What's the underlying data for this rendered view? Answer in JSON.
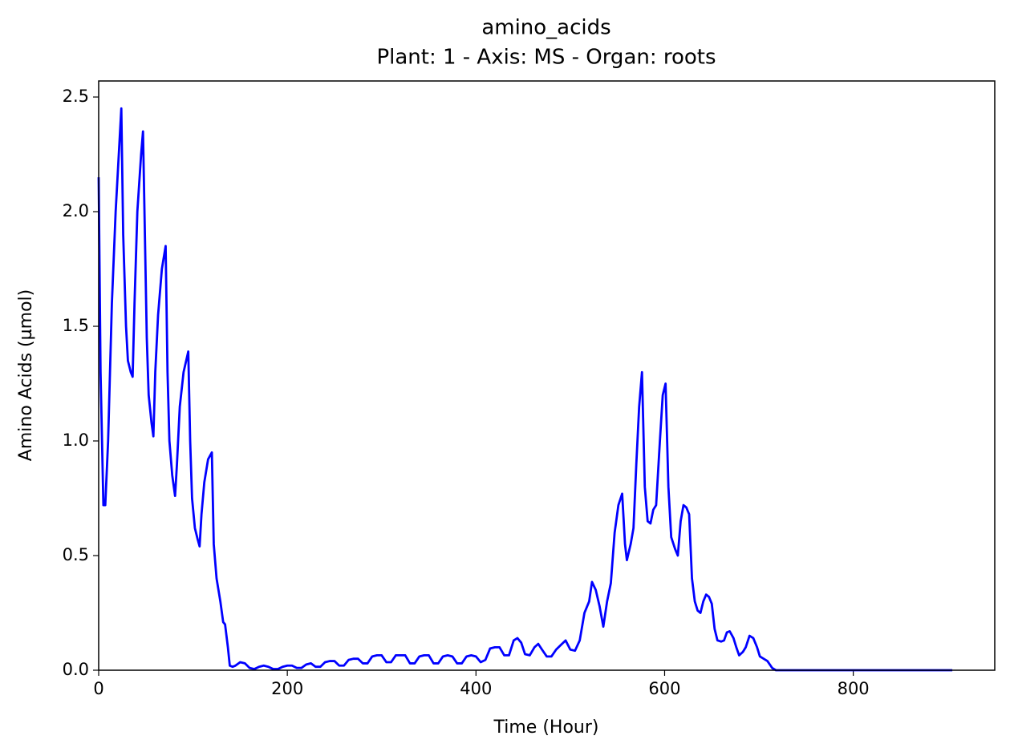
{
  "chart_data": {
    "type": "line",
    "title": "amino_acids",
    "subtitle": "Plant: 1 - Axis: MS - Organ: roots",
    "x_label": "Time (Hour)",
    "y_label": "Amino Acids (µmol)",
    "color": "#0000ff",
    "xlim": [
      0,
      950
    ],
    "xticks": [
      0,
      200,
      400,
      600,
      800
    ],
    "ylim": [
      0,
      2.57
    ],
    "yticks": [
      {
        "value": 0,
        "label": "0.0"
      },
      0.5,
      {
        "value": 1,
        "label": "1.0"
      },
      1.5,
      {
        "value": 2,
        "label": "2.0"
      },
      2.5
    ],
    "x": [
      0,
      2,
      5,
      7,
      10,
      14,
      18,
      22,
      24,
      26,
      29,
      31,
      34,
      36,
      38,
      41,
      45,
      47,
      49,
      51,
      53,
      56,
      58,
      60,
      63,
      67,
      71,
      73,
      75,
      78,
      81,
      83,
      86,
      90,
      95,
      97,
      99,
      102,
      105,
      107,
      109,
      112,
      116,
      120,
      122,
      125,
      129,
      132,
      134,
      137,
      139,
      142,
      145,
      150,
      155,
      160,
      165,
      170,
      175,
      180,
      185,
      190,
      195,
      200,
      205,
      210,
      215,
      220,
      225,
      230,
      235,
      240,
      245,
      250,
      255,
      260,
      265,
      270,
      275,
      280,
      285,
      290,
      295,
      300,
      305,
      310,
      315,
      320,
      325,
      330,
      335,
      340,
      345,
      350,
      355,
      360,
      365,
      370,
      375,
      380,
      385,
      390,
      395,
      400,
      405,
      410,
      415,
      420,
      425,
      430,
      435,
      440,
      444,
      448,
      452,
      457,
      462,
      466,
      470,
      475,
      480,
      485,
      490,
      495,
      500,
      505,
      510,
      515,
      520,
      523,
      527,
      531,
      535,
      539,
      543,
      547,
      551,
      555,
      558,
      560,
      564,
      567,
      570,
      573,
      576,
      579,
      582,
      585,
      588,
      591,
      595,
      598,
      601,
      604,
      607,
      611,
      614,
      617,
      620,
      623,
      626,
      629,
      632,
      635,
      638,
      641,
      644,
      647,
      650,
      653,
      656,
      660,
      663,
      666,
      669,
      673,
      676,
      679,
      683,
      686,
      690,
      694,
      698,
      701,
      705,
      709,
      714,
      718,
      900,
      905
    ],
    "values": [
      2.15,
      1.3,
      0.72,
      0.72,
      1.0,
      1.6,
      2.0,
      2.3,
      2.45,
      1.9,
      1.5,
      1.35,
      1.3,
      1.28,
      1.6,
      2.0,
      2.25,
      2.35,
      1.9,
      1.45,
      1.2,
      1.08,
      1.02,
      1.3,
      1.55,
      1.75,
      1.85,
      1.3,
      1.0,
      0.85,
      0.76,
      0.9,
      1.15,
      1.3,
      1.39,
      1.0,
      0.75,
      0.62,
      0.57,
      0.54,
      0.68,
      0.82,
      0.92,
      0.95,
      0.55,
      0.4,
      0.3,
      0.21,
      0.2,
      0.1,
      0.02,
      0.015,
      0.02,
      0.035,
      0.03,
      0.01,
      0.005,
      0.015,
      0.02,
      0.015,
      0.005,
      0.005,
      0.015,
      0.02,
      0.02,
      0.01,
      0.01,
      0.025,
      0.03,
      0.015,
      0.015,
      0.035,
      0.04,
      0.04,
      0.02,
      0.02,
      0.045,
      0.05,
      0.05,
      0.03,
      0.03,
      0.06,
      0.065,
      0.065,
      0.035,
      0.035,
      0.065,
      0.065,
      0.065,
      0.03,
      0.03,
      0.06,
      0.065,
      0.065,
      0.03,
      0.03,
      0.06,
      0.065,
      0.06,
      0.03,
      0.03,
      0.06,
      0.065,
      0.06,
      0.035,
      0.045,
      0.095,
      0.1,
      0.1,
      0.065,
      0.065,
      0.13,
      0.14,
      0.12,
      0.07,
      0.065,
      0.1,
      0.115,
      0.09,
      0.06,
      0.06,
      0.09,
      0.11,
      0.13,
      0.09,
      0.085,
      0.13,
      0.25,
      0.3,
      0.385,
      0.35,
      0.28,
      0.19,
      0.3,
      0.38,
      0.6,
      0.72,
      0.77,
      0.55,
      0.48,
      0.55,
      0.62,
      0.9,
      1.15,
      1.3,
      0.8,
      0.65,
      0.64,
      0.7,
      0.72,
      1.0,
      1.2,
      1.25,
      0.8,
      0.58,
      0.53,
      0.5,
      0.65,
      0.72,
      0.71,
      0.68,
      0.4,
      0.3,
      0.26,
      0.25,
      0.3,
      0.33,
      0.32,
      0.29,
      0.18,
      0.13,
      0.125,
      0.13,
      0.165,
      0.17,
      0.14,
      0.1,
      0.065,
      0.08,
      0.1,
      0.15,
      0.14,
      0.1,
      0.06,
      0.05,
      0.04,
      0.01,
      0,
      0,
      0
    ]
  }
}
